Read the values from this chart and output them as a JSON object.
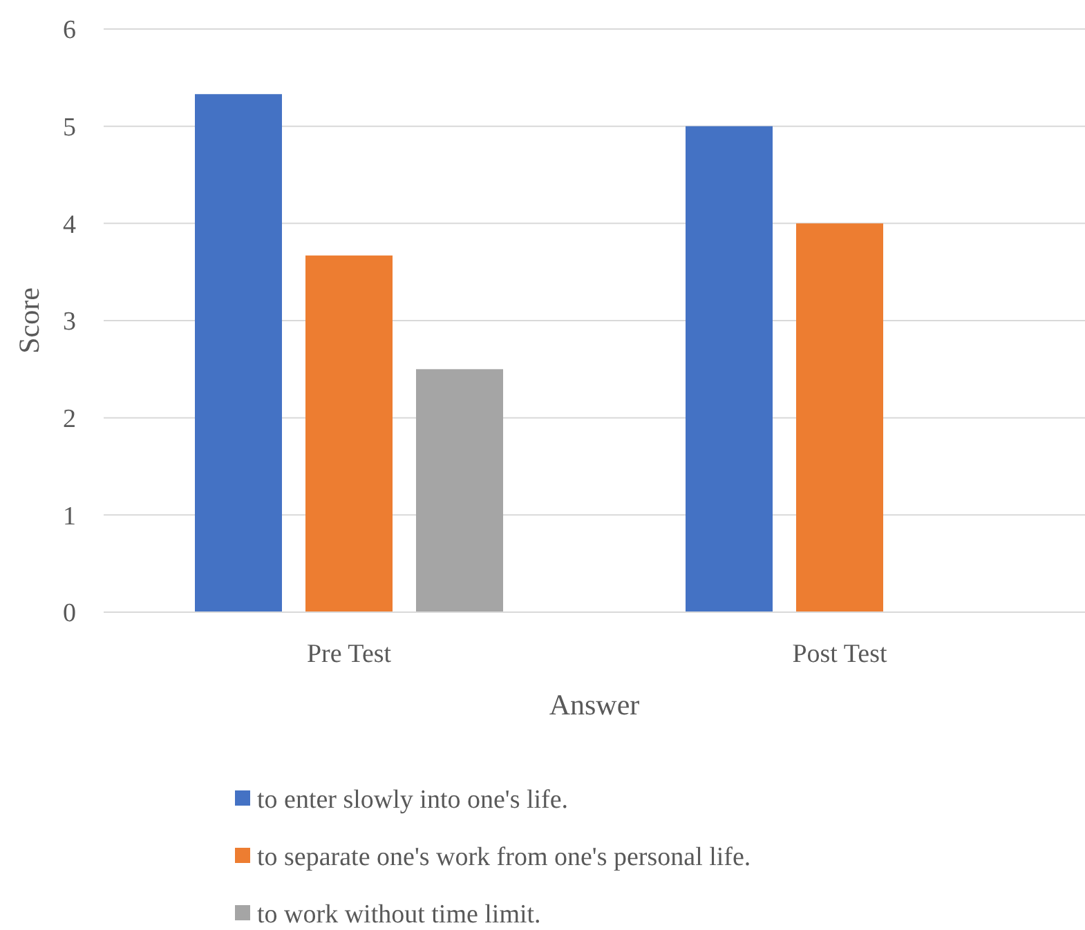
{
  "chart_data": {
    "type": "bar",
    "xlabel": "Answer",
    "ylabel": "Score",
    "categories": [
      "Pre Test",
      "Post Test"
    ],
    "series": [
      {
        "name": "to enter slowly into one's life.",
        "color": "#4472c4",
        "values": [
          5.33,
          5
        ]
      },
      {
        "name": "to separate one's work from one's personal life.",
        "color": "#ed7d31",
        "values": [
          3.67,
          4
        ]
      },
      {
        "name": "to work without time limit.",
        "color": "#a5a5a5",
        "values": [
          2.5,
          null
        ]
      }
    ],
    "ylim": [
      0,
      6
    ],
    "yticks": [
      0,
      1,
      2,
      3,
      4,
      5,
      6
    ],
    "grid": "y",
    "legend": "bottom"
  }
}
